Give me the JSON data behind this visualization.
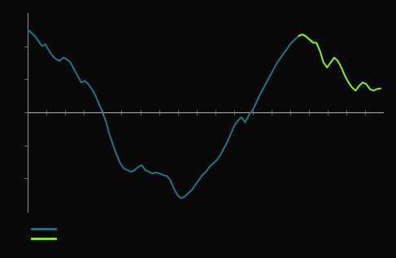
{
  "background_color": "#080808",
  "axes_color": "#080808",
  "spine_color": "#888888",
  "zero_line_color": "#aaaaaa",
  "teal_color": "#1a7a8a",
  "green_color": "#7fff00",
  "ylim": [
    -3.0,
    3.0
  ],
  "xlim": [
    0,
    100
  ],
  "teal_data": [
    2.5,
    2.4,
    2.3,
    2.15,
    2.0,
    2.05,
    1.85,
    1.7,
    1.6,
    1.55,
    1.65,
    1.6,
    1.5,
    1.3,
    1.1,
    0.9,
    0.95,
    0.85,
    0.7,
    0.5,
    0.25,
    0.0,
    -0.3,
    -0.7,
    -1.0,
    -1.3,
    -1.55,
    -1.7,
    -1.75,
    -1.8,
    -1.75,
    -1.65,
    -1.6,
    -1.75,
    -1.8,
    -1.85,
    -1.82,
    -1.85,
    -1.9,
    -1.92,
    -2.05,
    -2.3,
    -2.5,
    -2.6,
    -2.55,
    -2.45,
    -2.35,
    -2.2,
    -2.05,
    -1.9,
    -1.8,
    -1.65,
    -1.55,
    -1.45,
    -1.3,
    -1.1,
    -0.9,
    -0.65,
    -0.4,
    -0.25,
    -0.15,
    -0.3,
    -0.1,
    0.05,
    0.25,
    0.5,
    0.7,
    0.9,
    1.1,
    1.3,
    1.5,
    1.65,
    1.8,
    1.95,
    2.1,
    2.2,
    2.3,
    2.35,
    2.3,
    2.2,
    2.15,
    2.1
  ],
  "teal_end_idx": 81,
  "green_start_idx": 76,
  "green_data": [
    2.3,
    2.35,
    2.3,
    2.2,
    2.1,
    2.1,
    1.85,
    1.5,
    1.35,
    1.5,
    1.65,
    1.55,
    1.35,
    1.1,
    0.9,
    0.75,
    0.65,
    0.8,
    0.9,
    0.85,
    0.7,
    0.65,
    0.7,
    0.72
  ],
  "ytick_positions": [
    -2,
    -1,
    0,
    1,
    2
  ],
  "xtick_count": 20
}
